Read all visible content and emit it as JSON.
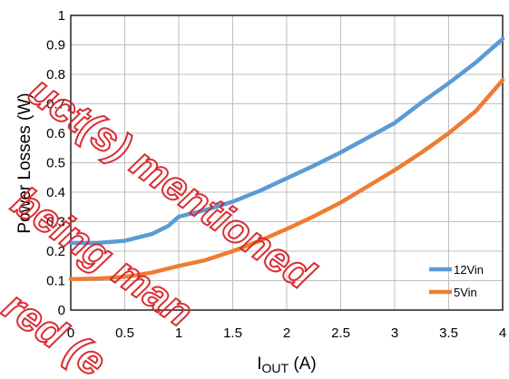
{
  "chart_data": {
    "type": "line",
    "title": "",
    "xlabel_main": "I",
    "xlabel_sub": "OUT",
    "xlabel_unit": " (A)",
    "ylabel": "Power Losses (W)",
    "xlim": [
      0,
      4
    ],
    "ylim": [
      0,
      1
    ],
    "x_ticks": [
      "0",
      "0.5",
      "1",
      "1.5",
      "2",
      "2.5",
      "3",
      "3.5",
      "4"
    ],
    "y_ticks": [
      "0",
      "0.1",
      "0.2",
      "0.3",
      "0.4",
      "0.5",
      "0.6",
      "0.7",
      "0.8",
      "0.9",
      "1"
    ],
    "grid": true,
    "legend_position": "bottom-right",
    "series": [
      {
        "name": "12Vin",
        "color": "#5b9bd5",
        "x": [
          0,
          0.25,
          0.5,
          0.75,
          0.9,
          1.0,
          1.25,
          1.5,
          1.75,
          2.0,
          2.25,
          2.5,
          2.75,
          3.0,
          3.25,
          3.5,
          3.75,
          4.0
        ],
        "y": [
          0.228,
          0.228,
          0.235,
          0.258,
          0.285,
          0.317,
          0.34,
          0.368,
          0.405,
          0.447,
          0.49,
          0.535,
          0.585,
          0.635,
          0.705,
          0.77,
          0.84,
          0.92
        ]
      },
      {
        "name": "5Vin",
        "color": "#ed7d31",
        "x": [
          0,
          0.25,
          0.5,
          0.75,
          1.0,
          1.25,
          1.5,
          1.75,
          2.0,
          2.25,
          2.5,
          2.75,
          3.0,
          3.25,
          3.5,
          3.75,
          4.0
        ],
        "y": [
          0.105,
          0.107,
          0.113,
          0.127,
          0.15,
          0.17,
          0.2,
          0.235,
          0.275,
          0.318,
          0.365,
          0.42,
          0.475,
          0.535,
          0.6,
          0.675,
          0.78
        ]
      }
    ],
    "watermark_lines": [
      "uct(s) mentioned",
      "being man",
      "red (e"
    ]
  }
}
